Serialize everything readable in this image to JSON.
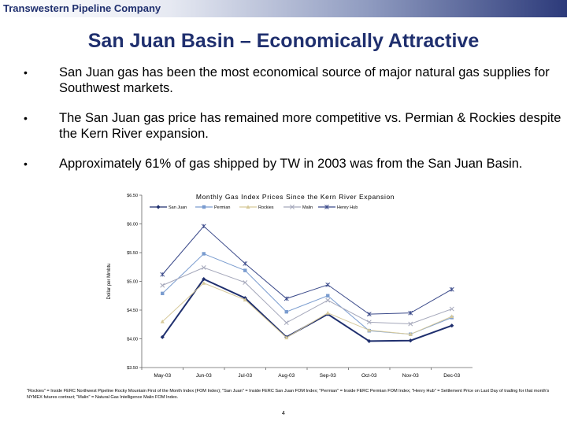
{
  "header": {
    "company": "Transwestern Pipeline Company"
  },
  "title": "San Juan Basin – Economically Attractive",
  "bullets": [
    "San Juan gas has been the most economical source of major natural gas supplies for Southwest markets.",
    "The San Juan gas price has remained more competitive vs. Permian & Rockies despite the Kern River expansion.",
    "Approximately 61% of gas shipped by TW in 2003 was from the San Juan Basin."
  ],
  "bullet_glyph": "•",
  "chart_data": {
    "type": "line",
    "title": "Monthly Gas Index Prices Since the Kern River Expansion",
    "ylabel": "Dollar per Mmbtu",
    "xlabel": "",
    "categories": [
      "May-03",
      "Jun-03",
      "Jul-03",
      "Aug-03",
      "Sep-03",
      "Oct-03",
      "Nov-03",
      "Dec-03"
    ],
    "ylim": [
      3.5,
      6.5
    ],
    "yticks": [
      "$3.50",
      "$4.00",
      "$4.50",
      "$5.00",
      "$5.50",
      "$6.00",
      "$6.50"
    ],
    "legend_position": "top",
    "series": [
      {
        "name": "San Juan",
        "color": "#1f2f6e",
        "marker": "diamond",
        "values": [
          4.03,
          5.04,
          4.71,
          4.03,
          4.43,
          3.96,
          3.97,
          4.23
        ]
      },
      {
        "name": "Permian",
        "color": "#7a9ccf",
        "marker": "square",
        "values": [
          4.79,
          5.48,
          5.19,
          4.47,
          4.75,
          4.14,
          4.08,
          4.37
        ]
      },
      {
        "name": "Rockies",
        "color": "#d6c99a",
        "marker": "triangle",
        "values": [
          4.3,
          4.97,
          4.68,
          4.02,
          4.45,
          4.15,
          4.08,
          4.39
        ]
      },
      {
        "name": "Malin",
        "color": "#a4a7ba",
        "marker": "x",
        "values": [
          4.93,
          5.24,
          4.98,
          4.28,
          4.67,
          4.29,
          4.26,
          4.52
        ]
      },
      {
        "name": "Henry Hub",
        "color": "#3b4a8a",
        "marker": "star",
        "values": [
          5.12,
          5.96,
          5.31,
          4.7,
          4.94,
          4.43,
          4.45,
          4.86
        ]
      }
    ]
  },
  "footnote": "\"Rockies\" = Inside FERC Northwest Pipeline Rocky Mountain First of the Month Index (FOM Index); \"San Juan\" = Inside FERC San Juan FOM Index; \"Permian\" = Inside FERC Permian FOM Index; \"Henry Hub\" = Settlement Price on Last Day of trading for that month's NYMEX futures contract; \"Malin\" = Natural Gas Intelligence Malin FOM Index.",
  "page_number": "4"
}
